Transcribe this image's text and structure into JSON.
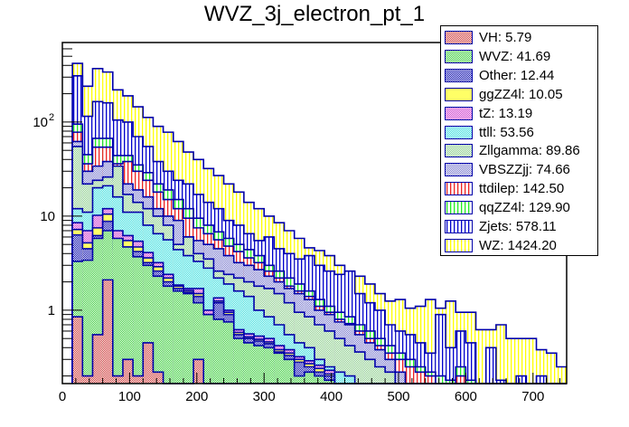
{
  "chart_data": {
    "type": "bar",
    "stacked": true,
    "title": "WVZ_3j_electron_pt_1",
    "xlabel": "",
    "ylabel": "",
    "xlim": [
      0,
      750
    ],
    "ylim": [
      0.166,
      700
    ],
    "yscale": "log",
    "bin_width": 15,
    "x_bin_starts": [
      15,
      30,
      45,
      60,
      75,
      90,
      105,
      120,
      135,
      150,
      165,
      180,
      195,
      210,
      225,
      240,
      255,
      270,
      285,
      300,
      315,
      330,
      345,
      360,
      375,
      390,
      405,
      420,
      435,
      450,
      465,
      480,
      495,
      510,
      525,
      540,
      555,
      570,
      585,
      600,
      615,
      630,
      645,
      660,
      675,
      690,
      705,
      720,
      735
    ],
    "xticks": [
      "0",
      "100",
      "200",
      "300",
      "400",
      "500",
      "600",
      "700"
    ],
    "xtick_values": [
      0,
      100,
      200,
      300,
      400,
      500,
      600,
      700
    ],
    "yticks": [
      "1",
      "10",
      "10^2"
    ],
    "ytick_values": [
      1,
      10,
      100
    ],
    "legend_position": "top-right",
    "series": [
      {
        "name": "VH",
        "total": "5.79",
        "color": "#cc3333",
        "pattern": "checker",
        "cumulative": [
          0.85,
          0.2,
          0.55,
          2.1,
          0.2,
          0.3,
          0.2,
          0.45,
          0.22,
          0,
          0,
          0,
          0.3,
          0,
          0,
          0,
          0,
          0,
          0,
          0,
          0,
          0,
          0,
          0,
          0,
          0,
          0,
          0,
          0,
          0,
          0,
          0,
          0,
          0,
          0,
          0,
          0,
          0,
          0,
          0,
          0,
          0,
          0,
          0,
          0,
          0,
          0,
          0,
          0
        ]
      },
      {
        "name": "WVZ",
        "total": "41.69",
        "color": "#33cc33",
        "pattern": "checker",
        "cumulative": [
          3.3,
          3.4,
          5.8,
          7.0,
          5.8,
          4.7,
          3.7,
          3.0,
          2.3,
          1.8,
          1.6,
          1.5,
          1.2,
          0.9,
          0.8,
          0.75,
          0.5,
          0.45,
          0.42,
          0.4,
          0.35,
          0.3,
          0.2,
          0.22,
          0.2,
          0.18,
          0,
          0,
          0,
          0,
          0,
          0,
          0,
          0,
          0,
          0,
          0,
          0,
          0,
          0,
          0,
          0,
          0,
          0,
          0,
          0,
          0,
          0,
          0
        ]
      },
      {
        "name": "Other",
        "total": "12.44",
        "color": "#0000aa",
        "pattern": "checker",
        "cumulative": [
          6.3,
          4.5,
          6.2,
          8.8,
          4.5,
          4.7,
          4.2,
          3.2,
          2.6,
          2.0,
          1.7,
          1.55,
          1.4,
          0.85,
          1.2,
          0.9,
          0.55,
          0.5,
          0.47,
          0.44,
          0.36,
          0.33,
          0.28,
          0.25,
          0.22,
          0.2,
          0,
          0,
          0,
          0,
          0,
          0,
          0,
          0,
          0,
          0,
          0,
          0,
          0,
          0,
          0,
          0,
          0,
          0,
          0,
          0,
          0,
          0,
          0
        ]
      },
      {
        "name": "ggZZ4l",
        "total": "10.05",
        "color": "#ffff66",
        "pattern": "solid",
        "cumulative": [
          7.2,
          5.2,
          7.5,
          10.5,
          5.7,
          5.5,
          4.7,
          3.6,
          2.9,
          2.2,
          1.8,
          1.62,
          1.5,
          0.9,
          1.25,
          0.95,
          0.58,
          0.52,
          0.49,
          0.46,
          0.38,
          0.35,
          0.3,
          0.27,
          0.24,
          0.21,
          0,
          0,
          0,
          0,
          0,
          0,
          0,
          0,
          0,
          0,
          0,
          0,
          0,
          0,
          0,
          0,
          0,
          0,
          0,
          0,
          0,
          0,
          0
        ]
      },
      {
        "name": "tZ",
        "total": "13.19",
        "color": "#cc33cc",
        "pattern": "checker",
        "cumulative": [
          8.5,
          7.0,
          10.2,
          12.0,
          7.0,
          6.2,
          5.4,
          4.1,
          3.2,
          2.4,
          1.85,
          1.7,
          1.7,
          1.0,
          1.35,
          1.0,
          0.62,
          0.56,
          0.53,
          0.5,
          0.42,
          0.38,
          0.32,
          0.29,
          0.26,
          0.23,
          0,
          0,
          0,
          0,
          0,
          0,
          0,
          0,
          0,
          0,
          0,
          0,
          0,
          0,
          0,
          0,
          0,
          0,
          0,
          0,
          0,
          0,
          0
        ]
      },
      {
        "name": "ttll",
        "total": "53.56",
        "color": "#33dddd",
        "pattern": "checker",
        "cumulative": [
          12,
          11,
          20,
          21,
          16,
          11,
          11,
          8,
          6.5,
          5.6,
          4.4,
          3.8,
          3.3,
          2.8,
          2.2,
          1.9,
          1.6,
          1.4,
          1.0,
          0.85,
          0.7,
          0.55,
          0.45,
          0.4,
          0.3,
          0.25,
          0.22,
          0.2,
          0,
          0,
          0,
          0,
          0,
          0,
          0,
          0,
          0,
          0,
          0,
          0,
          0,
          0,
          0,
          0,
          0,
          0,
          0,
          0,
          0
        ]
      },
      {
        "name": "Zllgamma",
        "total": "89.86",
        "color": "#88cc88",
        "pattern": "checker",
        "cumulative": [
          55,
          22,
          24,
          26,
          34,
          17,
          14,
          12,
          10,
          8,
          5,
          6,
          4,
          3.5,
          2.6,
          2.4,
          2.2,
          2.0,
          1.8,
          1.7,
          1.5,
          1.2,
          0.95,
          0.85,
          0.7,
          0.6,
          0.5,
          0.42,
          0.36,
          0.3,
          0.25,
          0.22,
          0,
          0,
          0,
          0,
          0,
          0,
          0,
          0,
          0,
          0,
          0,
          0,
          0,
          0,
          0,
          0,
          0
        ]
      },
      {
        "name": "VBSZZjj",
        "total": "74.66",
        "color": "#7777cc",
        "pattern": "checker",
        "cumulative": [
          62,
          30,
          34,
          38,
          24,
          22,
          19,
          16,
          12,
          10,
          9,
          6,
          5.5,
          5.0,
          4.5,
          3.8,
          3.2,
          3.0,
          2.7,
          2.3,
          2.0,
          1.7,
          1.5,
          1.3,
          1.0,
          0.9,
          0.75,
          0.7,
          0.55,
          0.45,
          0.38,
          0.3,
          0.22,
          0,
          0,
          0,
          0,
          0,
          0,
          0,
          0,
          0,
          0,
          0,
          0,
          0,
          0,
          0,
          0
        ]
      },
      {
        "name": "ttdilep",
        "total": "142.50",
        "color": "#ee2222",
        "pattern": "vlines",
        "cumulative": [
          78,
          36,
          54,
          54,
          36,
          38,
          30,
          24,
          18,
          15,
          12,
          9.5,
          7.5,
          6.5,
          5.6,
          4.8,
          4.2,
          3.6,
          3.2,
          2.6,
          2.2,
          1.8,
          1.6,
          1.4,
          1.1,
          0.95,
          0.8,
          0.72,
          0.6,
          0.5,
          0.42,
          0.35,
          0.3,
          0.25,
          0.22,
          0.2,
          0,
          0,
          0.2,
          0,
          0,
          0,
          0,
          0,
          0,
          0,
          0,
          0,
          0
        ]
      },
      {
        "name": "qqZZ4l",
        "total": "129.90",
        "color": "#22ee22",
        "pattern": "vlines",
        "cumulative": [
          95,
          45,
          67,
          67,
          44,
          44,
          35,
          29,
          22,
          19,
          15,
          12,
          9.5,
          8.0,
          6.8,
          5.8,
          5.0,
          4.4,
          3.8,
          3.0,
          2.6,
          2.2,
          1.9,
          1.6,
          1.3,
          1.1,
          0.95,
          0.85,
          0.7,
          0.6,
          0.5,
          0.42,
          0.35,
          0.3,
          0.25,
          0.22,
          0.2,
          0.18,
          0.25,
          0.18,
          0,
          0,
          0,
          0,
          0,
          0,
          0,
          0,
          0
        ]
      },
      {
        "name": "Zjets",
        "total": "578.11",
        "color": "#0000cc",
        "pattern": "vlines",
        "cumulative": [
          310,
          115,
          165,
          160,
          105,
          100,
          70,
          55,
          38,
          30,
          24,
          22,
          17,
          14,
          12,
          9,
          8,
          6.5,
          5.5,
          6,
          4.5,
          4,
          3.5,
          3.8,
          3.0,
          2.6,
          2.4,
          2.6,
          1.5,
          1.2,
          1.0,
          0.7,
          0.6,
          0.55,
          0.45,
          0.35,
          0.9,
          0.4,
          0.6,
          0.45,
          0,
          0.4,
          0.18,
          0,
          0.2,
          0,
          0.2,
          0,
          0
        ]
      },
      {
        "name": "WZ",
        "total": "1424.20",
        "color": "#ffff00",
        "pattern": "vlines",
        "cumulative": [
          420,
          240,
          370,
          340,
          220,
          190,
          145,
          112,
          90,
          78,
          62,
          48,
          40,
          32,
          27,
          22,
          18,
          14,
          12,
          10,
          8.5,
          7.0,
          5.8,
          4.6,
          4.3,
          3.8,
          3.0,
          2.5,
          2.3,
          1.9,
          1.5,
          1.25,
          1.3,
          1.05,
          1.1,
          1.3,
          1.05,
          1.25,
          0.95,
          0.95,
          0.62,
          0.62,
          0.7,
          0.5,
          0.5,
          0.5,
          0.38,
          0.35,
          0.25
        ]
      }
    ]
  }
}
